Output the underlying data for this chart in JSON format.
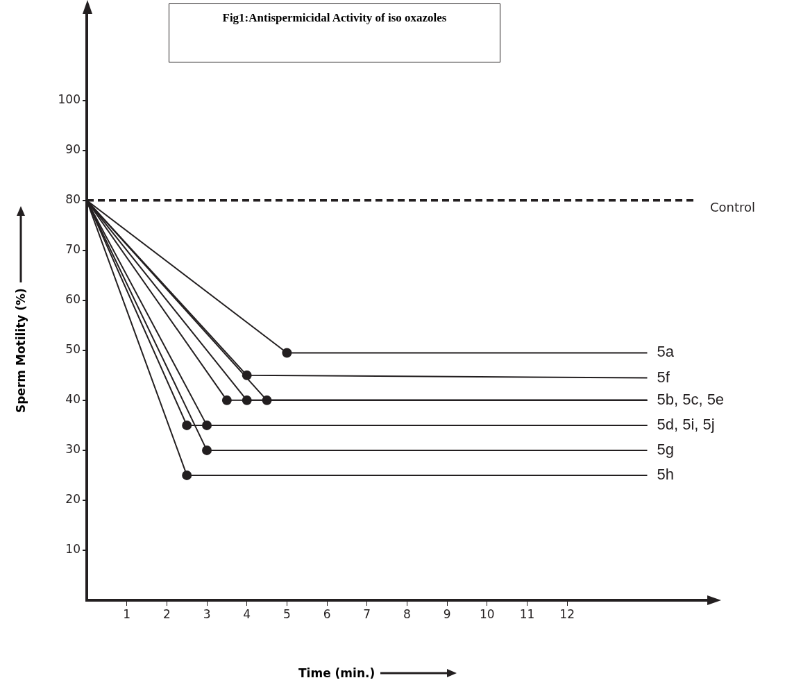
{
  "chart_data": {
    "type": "line",
    "title": "Fig1:Antispermicidal Activity of iso oxazoles",
    "xlabel": "Time (min.)",
    "ylabel": "Sperm Motility (%)",
    "xlim": [
      0,
      15.5
    ],
    "ylim": [
      0,
      118
    ],
    "xticks": [
      1,
      2,
      3,
      4,
      5,
      6,
      7,
      8,
      9,
      10,
      11,
      12
    ],
    "yticks": [
      10,
      20,
      30,
      40,
      50,
      60,
      70,
      80,
      90,
      100
    ],
    "grid": false,
    "legend": false,
    "marker": "none",
    "line_style": "solid",
    "color": "#231f20",
    "series": [
      {
        "name": "5a",
        "x": [
          0,
          5,
          14
        ],
        "values": [
          80,
          49.5,
          49.5
        ]
      },
      {
        "name": "5f",
        "x": [
          0,
          4,
          14
        ],
        "values": [
          80,
          45,
          44.5
        ]
      },
      {
        "name": "5b, 5c, 5e",
        "x": [
          0,
          3.5,
          14
        ],
        "values": [
          80,
          40,
          40
        ]
      },
      {
        "x": [
          0,
          4,
          14
        ],
        "values": [
          80,
          40,
          40
        ]
      },
      {
        "x": [
          0,
          4.5,
          14
        ],
        "values": [
          80,
          40,
          40
        ]
      },
      {
        "name": "5d, 5i, 5j",
        "x": [
          0,
          2.5,
          14
        ],
        "values": [
          80,
          35,
          35
        ]
      },
      {
        "x": [
          0,
          3,
          14
        ],
        "values": [
          80,
          35,
          35
        ]
      },
      {
        "name": "5g",
        "x": [
          0,
          3,
          14
        ],
        "values": [
          80,
          30,
          30
        ]
      },
      {
        "name": "5h",
        "x": [
          0,
          2.5,
          14
        ],
        "values": [
          80,
          25,
          25
        ]
      },
      {
        "type": "scatter",
        "marker": "circle",
        "x": [
          5,
          4,
          3.5,
          4,
          4.5,
          2.5,
          3,
          3,
          2.5
        ],
        "values": [
          49.5,
          45,
          40,
          40,
          40,
          35,
          35,
          30,
          25
        ]
      }
    ],
    "ref_lines": [
      {
        "axis": "y",
        "value": 80,
        "label": "Control",
        "line_style": "dashed"
      }
    ]
  }
}
